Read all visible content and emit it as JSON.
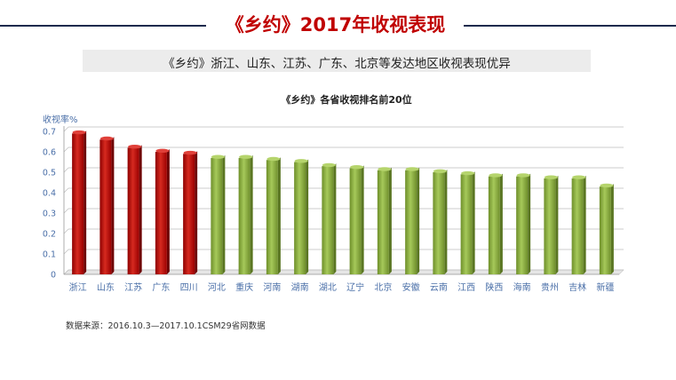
{
  "header": {
    "title": "《乡约》2017年收视表现",
    "subtitle": "《乡约》浙江、山东、江苏、广东、北京等发达地区收视表现优异"
  },
  "footer": {
    "source": "数据来源：2016.10.3—2017.10.1CSM29省网数据"
  },
  "colors": {
    "title": "#c00000",
    "highlight_bar": "#c00000",
    "normal_bar": "#8cb040"
  },
  "chart_data": {
    "type": "bar",
    "title": "《乡约》各省收视排名前20位",
    "ylabel": "收视率%",
    "xlabel": "",
    "ylim": [
      0,
      0.7
    ],
    "yticks": [
      "0",
      "0.1",
      "0.2",
      "0.3",
      "0.4",
      "0.5",
      "0.6",
      "0.7"
    ],
    "categories": [
      "浙江",
      "山东",
      "江苏",
      "广东",
      "四川",
      "河北",
      "重庆",
      "河南",
      "湖南",
      "湖北",
      "辽宁",
      "北京",
      "安徽",
      "云南",
      "江西",
      "陕西",
      "海南",
      "贵州",
      "吉林",
      "新疆"
    ],
    "values": [
      0.69,
      0.66,
      0.62,
      0.6,
      0.59,
      0.57,
      0.57,
      0.56,
      0.55,
      0.53,
      0.52,
      0.51,
      0.51,
      0.5,
      0.49,
      0.48,
      0.48,
      0.47,
      0.47,
      0.43
    ],
    "highlight_count": 5,
    "grid": true
  }
}
